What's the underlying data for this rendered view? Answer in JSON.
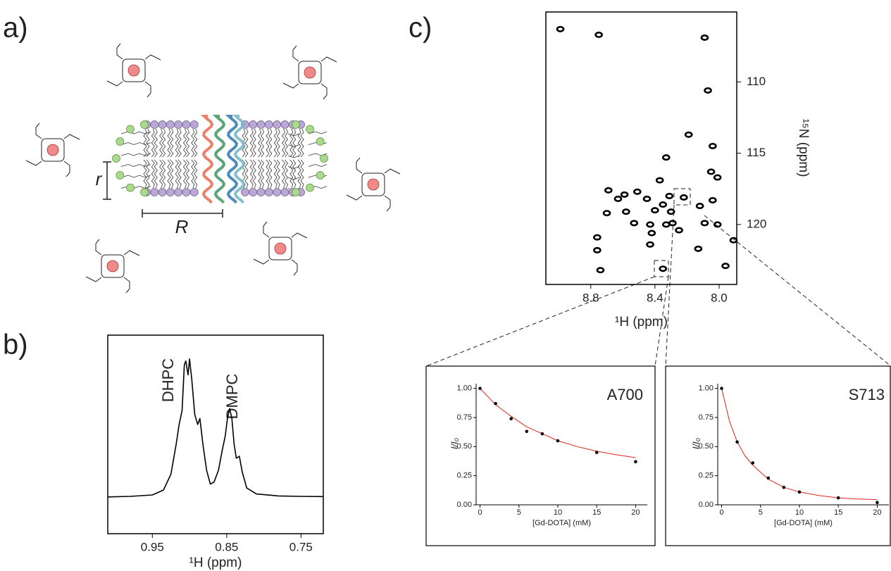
{
  "panel_labels": [
    "a)",
    "b)",
    "c)"
  ],
  "diagram": {
    "r_label": "r",
    "R_label": "R"
  },
  "chart_data": [
    {
      "type": "line",
      "x_label": "¹H (ppm)",
      "annotations": [
        {
          "text": "DHPC",
          "color": "#e2231a"
        },
        {
          "text": "DMPC",
          "color": "#1f7fc0"
        }
      ],
      "color": "#000000",
      "x": [
        1.01,
        0.98,
        0.95,
        0.935,
        0.925,
        0.918,
        0.914,
        0.91,
        0.907,
        0.905,
        0.902,
        0.9,
        0.897,
        0.893,
        0.889,
        0.886,
        0.882,
        0.877,
        0.872,
        0.867,
        0.861,
        0.856,
        0.852,
        0.849,
        0.846,
        0.843,
        0.84,
        0.837,
        0.833,
        0.829,
        0.823,
        0.81,
        0.78,
        0.75,
        0.72
      ],
      "values": [
        18.5,
        18.8,
        19.5,
        22,
        30,
        45,
        55,
        62,
        85,
        87,
        80,
        88,
        78,
        60,
        55,
        58,
        45,
        32,
        25,
        26,
        32,
        42,
        49,
        58,
        63,
        58,
        45,
        38,
        39,
        31,
        23,
        20,
        19,
        18.8,
        18.7
      ],
      "xlim": [
        1.01,
        0.72
      ],
      "ylim": [
        0,
        100
      ],
      "xticks": [
        0.95,
        0.85,
        0.75
      ]
    },
    {
      "type": "scatter",
      "x_label": "¹H (ppm)",
      "y_label": "¹⁵N (ppm)",
      "color": "#000000",
      "x": [
        8.99,
        8.75,
        8.09,
        8.07,
        8.19,
        8.04,
        8.33,
        8.05,
        8.01,
        8.37,
        8.69,
        8.51,
        8.59,
        8.63,
        8.31,
        8.22,
        8.45,
        8.04,
        8.12,
        8.35,
        8.4,
        8.3,
        8.58,
        8.7,
        8.53,
        8.43,
        8.33,
        8.29,
        8.09,
        8.01,
        8.25,
        8.42,
        8.76,
        8.76,
        8.43,
        8.13,
        7.91,
        7.96,
        8.74,
        8.35
      ],
      "values": [
        106.3,
        106.7,
        106.9,
        110.6,
        113.7,
        114.5,
        115.3,
        116.3,
        116.7,
        116.9,
        117.6,
        117.7,
        117.9,
        118.2,
        118.0,
        118.1,
        118.2,
        118.3,
        118.7,
        118.6,
        119.0,
        119.1,
        119.1,
        119.2,
        119.9,
        120.0,
        120.0,
        119.9,
        119.9,
        120.0,
        120.4,
        120.6,
        120.9,
        121.8,
        121.4,
        121.7,
        121.1,
        122.9,
        123.2,
        123.1
      ],
      "xlim": [
        9.08,
        7.89
      ],
      "ylim": [
        124.2,
        105.1
      ],
      "xticks": [
        8.8,
        8.4,
        {
          "value": 8.0,
          "label": "8.0"
        }
      ],
      "yticks": [
        110,
        115,
        120
      ]
    },
    {
      "type": "scatter",
      "title": "A700",
      "x_label": "[Gd-DOTA] (mM)",
      "y_label": "I/I₀",
      "color": "#000000",
      "x": [
        0,
        2,
        4,
        6,
        8,
        10,
        15,
        20
      ],
      "values": [
        1.0,
        0.87,
        0.74,
        0.63,
        0.61,
        0.55,
        0.45,
        0.37
      ],
      "fit": {
        "color": "#e2231a",
        "x": [
          0,
          1,
          2,
          3,
          4,
          6,
          8,
          10,
          12.5,
          15,
          17.5,
          20
        ],
        "values": [
          1.0,
          0.93,
          0.86,
          0.81,
          0.76,
          0.67,
          0.61,
          0.55,
          0.5,
          0.46,
          0.43,
          0.405
        ]
      },
      "xlim": [
        -0.5,
        21.5
      ],
      "ylim": [
        0,
        1.04
      ],
      "xticks": [
        0,
        5,
        10,
        15,
        20
      ],
      "yticks": [
        {
          "value": 0,
          "label": "0.00"
        },
        {
          "value": 0.25,
          "label": "0.25"
        },
        {
          "value": 0.5,
          "label": "0.50"
        },
        0.75,
        {
          "value": 1,
          "label": "1.00"
        }
      ]
    },
    {
      "type": "scatter",
      "title": "S713",
      "x_label": "[Gd-DOTA] (mM)",
      "y_label": "I/I₀",
      "color": "#000000",
      "x": [
        0,
        2,
        4,
        6,
        8,
        10,
        15,
        20
      ],
      "values": [
        1.0,
        0.54,
        0.36,
        0.23,
        0.15,
        0.11,
        0.06,
        0.02
      ],
      "fit": {
        "color": "#e2231a",
        "x": [
          0,
          1,
          2,
          3,
          4,
          6,
          8,
          10,
          12.5,
          15,
          17.5,
          20
        ],
        "values": [
          1.0,
          0.72,
          0.54,
          0.42,
          0.34,
          0.22,
          0.15,
          0.11,
          0.08,
          0.06,
          0.05,
          0.045
        ]
      },
      "xlim": [
        -0.5,
        21.5
      ],
      "ylim": [
        0,
        1.04
      ],
      "xticks": [
        0,
        5,
        10,
        15,
        20
      ],
      "yticks": [
        {
          "value": 0,
          "label": "0.00"
        },
        {
          "value": 0.25,
          "label": "0.25"
        },
        {
          "value": 0.5,
          "label": "0.50"
        },
        0.75,
        {
          "value": 1,
          "label": "1.00"
        }
      ]
    }
  ]
}
